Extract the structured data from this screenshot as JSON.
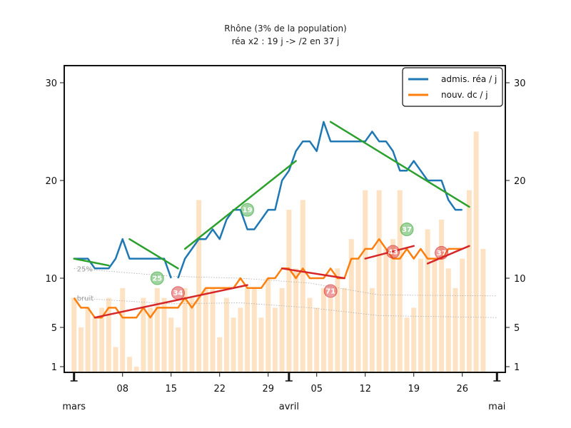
{
  "chart_data": {
    "type": "line",
    "title": "Rhône (3% de la population)",
    "subtitle": "réa x2 : 19 j -> /2 en 37 j",
    "y_ticks": [
      1,
      5,
      10,
      20,
      30
    ],
    "ylim": [
      0,
      32
    ],
    "x_tick_labels": [
      "08",
      "15",
      "22",
      "29",
      "05",
      "12",
      "19",
      "26"
    ],
    "x_tick_days": [
      8,
      15,
      22,
      29,
      36,
      43,
      50,
      57
    ],
    "month_labels": [
      {
        "label": "mars",
        "day": 1
      },
      {
        "label": "avril",
        "day": 32
      },
      {
        "label": "mai",
        "day": 62
      }
    ],
    "xlim": [
      0,
      63
    ],
    "series": [
      {
        "name": "admis. réa / j",
        "color": "#1f77b4",
        "x": [
          16,
          17,
          18,
          19,
          20,
          21,
          22,
          23,
          24,
          25,
          26,
          27,
          28,
          29,
          30,
          31,
          32,
          33,
          34,
          35,
          36,
          37,
          38,
          39,
          40,
          41,
          42,
          43,
          44,
          45,
          46,
          47,
          48,
          49,
          50,
          51,
          52,
          53,
          54,
          55,
          56,
          57
        ],
        "y": [
          10,
          12,
          13,
          14,
          14,
          15,
          14,
          16,
          17,
          17,
          15,
          15,
          16,
          17,
          17,
          20,
          21,
          23,
          24,
          24,
          23,
          26,
          24,
          24,
          24,
          24,
          24,
          24,
          25,
          24,
          24,
          23,
          21,
          21,
          22,
          21,
          20,
          20,
          20,
          18,
          17,
          17
        ]
      },
      {
        "name": "nouv. dc / j",
        "color": "#ff7f0e",
        "x": [
          1,
          2,
          3,
          4,
          5,
          6,
          7,
          8,
          9,
          10,
          11,
          12,
          13,
          14,
          15,
          16,
          17,
          18,
          19,
          20,
          21,
          22,
          23,
          24,
          25,
          26,
          27,
          28,
          29,
          30,
          31,
          32,
          33,
          34,
          35,
          36,
          37,
          38,
          39,
          40,
          41,
          42,
          43,
          44,
          45,
          46,
          47,
          48,
          49,
          50,
          51,
          52,
          53,
          54,
          55,
          56,
          57
        ],
        "y": [
          8,
          7,
          7,
          6,
          6,
          7,
          7,
          6,
          6,
          6,
          7,
          6,
          7,
          7,
          7,
          7,
          8,
          7,
          8,
          9,
          9,
          9,
          9,
          9,
          10,
          9,
          9,
          9,
          10,
          10,
          11,
          11,
          10,
          11,
          10,
          10,
          10,
          11,
          10,
          10,
          12,
          12,
          13,
          13,
          14,
          13,
          12,
          12,
          13,
          12,
          13,
          12,
          12,
          12,
          13,
          13,
          13
        ]
      }
    ],
    "early_rea": {
      "x": [
        1,
        2,
        3,
        4,
        5,
        6,
        7,
        8,
        9,
        10,
        11,
        12,
        13,
        14,
        15
      ],
      "y": [
        12,
        12,
        12,
        11,
        11,
        11,
        12,
        14,
        12,
        12,
        12,
        12,
        12,
        12,
        10
      ]
    },
    "fits": [
      {
        "color": "#2ca02c",
        "x": [
          1,
          6
        ],
        "y": [
          12,
          11.3
        ]
      },
      {
        "color": "#2ca02c",
        "x": [
          9,
          16
        ],
        "y": [
          14,
          11
        ]
      },
      {
        "color": "#2ca02c",
        "x": [
          17,
          33
        ],
        "y": [
          13,
          22
        ]
      },
      {
        "color": "#2ca02c",
        "x": [
          38,
          58
        ],
        "y": [
          26,
          17.3
        ]
      },
      {
        "color": "#d62728",
        "x": [
          4,
          26
        ],
        "y": [
          6,
          9.3
        ]
      },
      {
        "color": "#d62728",
        "x": [
          31,
          40
        ],
        "y": [
          11,
          10
        ]
      },
      {
        "color": "#d62728",
        "x": [
          43,
          50
        ],
        "y": [
          12,
          13.3
        ]
      },
      {
        "color": "#d62728",
        "x": [
          52,
          58
        ],
        "y": [
          11.5,
          13.3
        ]
      }
    ],
    "badges": [
      {
        "text": "25",
        "color": "#2ca02c",
        "day": 13,
        "y": 10
      },
      {
        "text": "19",
        "color": "#2ca02c",
        "day": 26,
        "y": 17
      },
      {
        "text": "37",
        "color": "#2ca02c",
        "day": 49,
        "y": 15
      },
      {
        "text": "34",
        "color": "#d62728",
        "day": 16,
        "y": 8.5
      },
      {
        "text": "71",
        "color": "#d62728",
        "day": 38,
        "y": 8.7
      },
      {
        "text": "43",
        "color": "#d62728",
        "day": 47,
        "y": 12.7
      },
      {
        "text": "37",
        "color": "#d62728",
        "day": 54,
        "y": 12.6
      }
    ],
    "bars": {
      "color": "#fde3c3",
      "x": [
        1,
        2,
        3,
        4,
        5,
        6,
        7,
        8,
        9,
        10,
        11,
        12,
        13,
        14,
        15,
        16,
        17,
        18,
        19,
        20,
        21,
        22,
        23,
        24,
        25,
        26,
        27,
        28,
        29,
        30,
        31,
        32,
        33,
        34,
        35,
        36,
        37,
        38,
        39,
        40,
        41,
        42,
        43,
        44,
        45,
        46,
        47,
        48,
        49,
        50,
        51,
        52,
        53,
        54,
        55,
        56,
        57,
        58,
        59,
        60
      ],
      "y": [
        8,
        5,
        7,
        6,
        7,
        8,
        3,
        9,
        2,
        1,
        8,
        7,
        9,
        8,
        6,
        5,
        9,
        8,
        18,
        9,
        9,
        4,
        8,
        6,
        7,
        9,
        9,
        6,
        10,
        7,
        9,
        17,
        11,
        18,
        8,
        7,
        9,
        8,
        11,
        9,
        14,
        12,
        19,
        9,
        19,
        13,
        14,
        19,
        6,
        7,
        12,
        15,
        12,
        16,
        11,
        9,
        12,
        19,
        25,
        13
      ]
    },
    "noise_bands": [
      {
        "label": "25%",
        "x": [
          1,
          15,
          25,
          35,
          45,
          62
        ],
        "y": [
          11,
          10.2,
          10,
          9.5,
          8.3,
          8.2
        ]
      },
      {
        "label": "bruit",
        "x": [
          1,
          15,
          25,
          35,
          45,
          62
        ],
        "y": [
          8,
          7.4,
          7.5,
          7,
          6.2,
          6.0
        ]
      }
    ],
    "grid": false,
    "legend_position": "top-right"
  }
}
